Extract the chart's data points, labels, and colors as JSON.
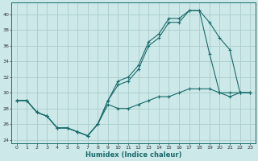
{
  "xlabel": "Humidex (Indice chaleur)",
  "background_color": "#cce8e8",
  "grid_color": "#aacccc",
  "line_color": "#1a6b6b",
  "xlim": [
    -0.5,
    23.5
  ],
  "ylim": [
    23.5,
    41.5
  ],
  "yticks": [
    24,
    26,
    28,
    30,
    32,
    34,
    36,
    38,
    40
  ],
  "xticks": [
    0,
    1,
    2,
    3,
    4,
    5,
    6,
    7,
    8,
    9,
    10,
    11,
    12,
    13,
    14,
    15,
    16,
    17,
    18,
    19,
    20,
    21,
    22,
    23
  ],
  "line_upper_x": [
    0,
    1,
    2,
    3,
    4,
    5,
    6,
    7,
    8,
    9,
    10,
    11,
    12,
    13,
    14,
    15,
    16,
    17,
    18,
    19,
    20,
    21,
    22,
    23
  ],
  "line_upper_y": [
    29.0,
    29.0,
    27.5,
    27.0,
    25.5,
    25.5,
    25.0,
    24.5,
    26.0,
    29.0,
    31.5,
    32.0,
    33.5,
    36.5,
    37.5,
    39.5,
    39.5,
    40.5,
    40.5,
    39.0,
    37.0,
    35.5,
    30.0,
    30.0
  ],
  "line_mid_x": [
    0,
    1,
    2,
    3,
    4,
    5,
    6,
    7,
    8,
    9,
    10,
    11,
    12,
    13,
    14,
    15,
    16,
    17,
    18,
    19,
    20,
    21,
    22,
    23
  ],
  "line_mid_y": [
    29.0,
    29.0,
    27.5,
    27.0,
    25.5,
    25.5,
    25.0,
    24.5,
    26.0,
    29.0,
    31.0,
    31.5,
    33.0,
    36.0,
    37.0,
    39.0,
    39.0,
    40.5,
    40.5,
    35.0,
    30.0,
    29.5,
    30.0,
    30.0
  ],
  "line_lower_x": [
    0,
    1,
    2,
    3,
    4,
    5,
    6,
    7,
    8,
    9,
    10,
    11,
    12,
    13,
    14,
    15,
    16,
    17,
    18,
    19,
    20,
    21,
    22,
    23
  ],
  "line_lower_y": [
    29.0,
    29.0,
    27.5,
    27.0,
    25.5,
    25.5,
    25.0,
    24.5,
    26.0,
    28.5,
    28.0,
    28.0,
    28.5,
    29.0,
    29.5,
    29.5,
    30.0,
    30.5,
    30.5,
    30.5,
    30.0,
    30.0,
    30.0,
    30.0
  ]
}
